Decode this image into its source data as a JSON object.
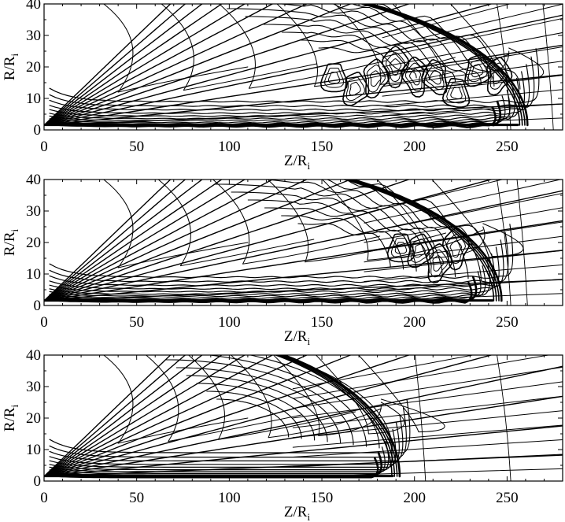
{
  "chart_data": [
    {
      "type": "contour",
      "xlabel": "Z/R",
      "xlabel_sub": "i",
      "ylabel": "R/R",
      "ylabel_sub": "i",
      "xlim": [
        0,
        280
      ],
      "ylim": [
        0,
        40
      ],
      "x_ticks": [
        "0",
        "50",
        "100",
        "150",
        "200",
        "250"
      ],
      "y_ticks": [
        "0",
        "10",
        "20",
        "30",
        "40"
      ],
      "bow_shock_z": 261,
      "turbulent": true
    },
    {
      "type": "contour",
      "xlabel": "Z/R",
      "xlabel_sub": "i",
      "ylabel": "R/R",
      "ylabel_sub": "i",
      "xlim": [
        0,
        280
      ],
      "ylim": [
        0,
        40
      ],
      "x_ticks": [
        "0",
        "50",
        "100",
        "150",
        "200",
        "250"
      ],
      "y_ticks": [
        "0",
        "10",
        "20",
        "30",
        "40"
      ],
      "bow_shock_z": 247,
      "turbulent": true
    },
    {
      "type": "contour",
      "xlabel": "Z/R",
      "xlabel_sub": "i",
      "ylabel": "R/R",
      "ylabel_sub": "i",
      "xlim": [
        0,
        280
      ],
      "ylim": [
        0,
        40
      ],
      "x_ticks": [
        "0",
        "50",
        "100",
        "150",
        "200",
        "250"
      ],
      "y_ticks": [
        "0",
        "10",
        "20",
        "30",
        "40"
      ],
      "bow_shock_z": 192,
      "turbulent": false
    }
  ]
}
